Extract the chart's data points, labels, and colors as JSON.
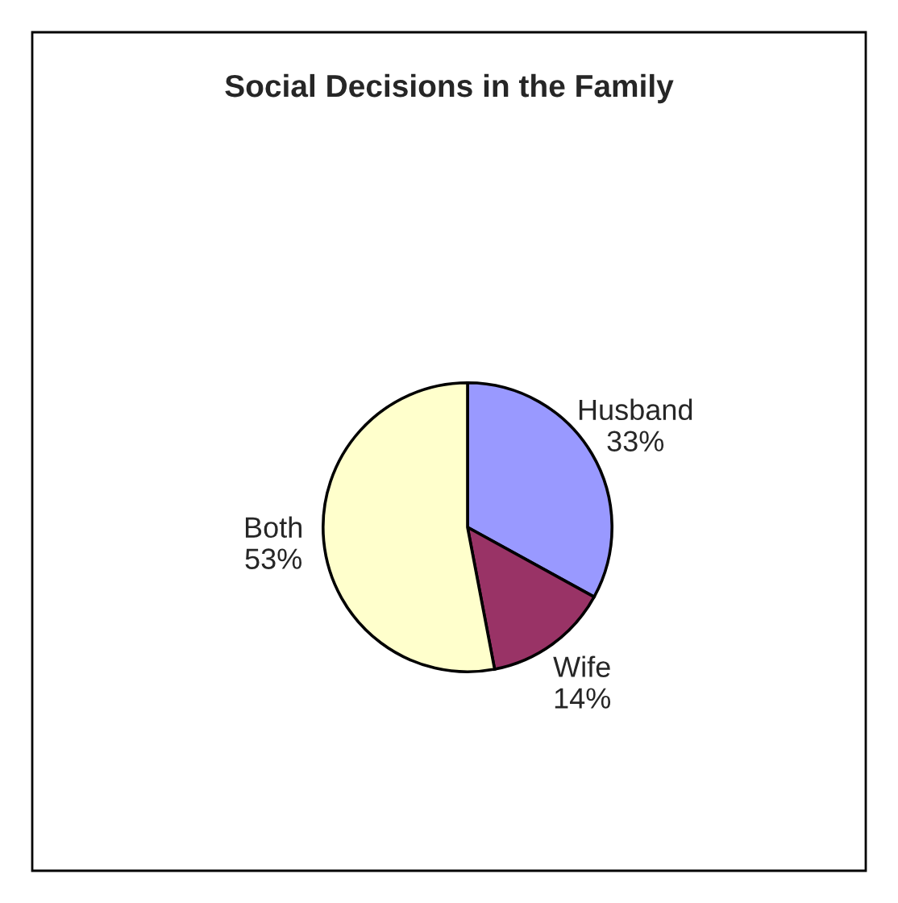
{
  "chart_data": {
    "type": "pie",
    "title": "Social Decisions in the Family",
    "categories": [
      "Husband",
      "Wife",
      "Both"
    ],
    "values": [
      33,
      14,
      53
    ],
    "value_labels": [
      "33%",
      "14%",
      "53%"
    ],
    "colors": [
      "#9999ff",
      "#993366",
      "#ffffcc"
    ]
  }
}
